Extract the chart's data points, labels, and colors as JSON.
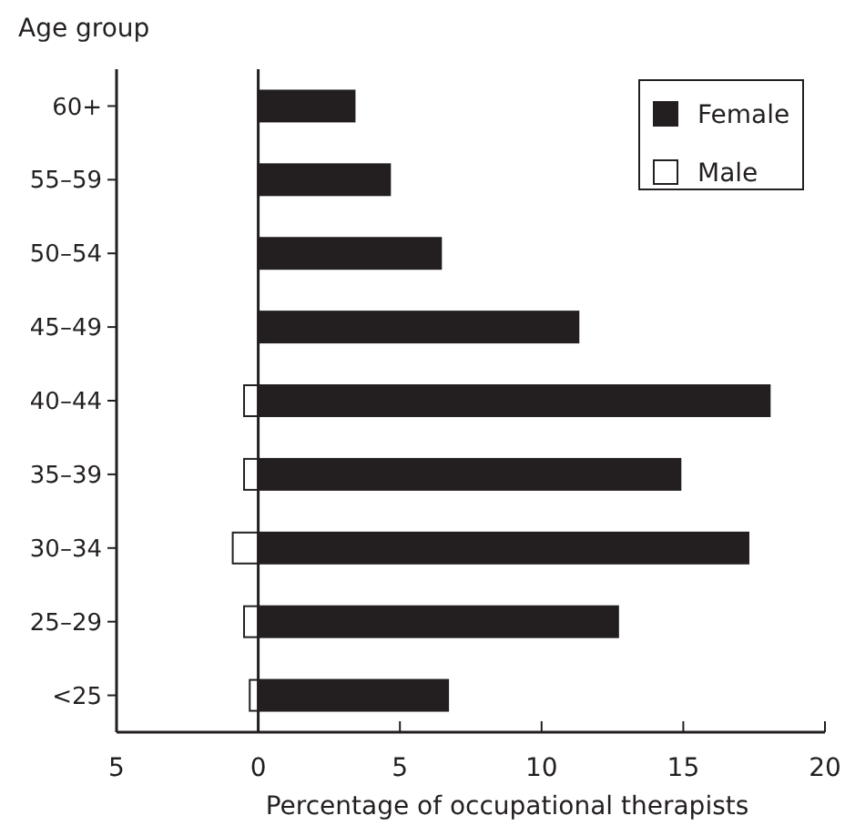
{
  "chart_data": {
    "type": "bar",
    "orientation": "horizontal",
    "stacked": true,
    "ylabel": "Age group",
    "xlabel": "Percentage of occupational therapists",
    "categories": [
      "60+",
      "55–59",
      "50–54",
      "45–49",
      "40–44",
      "35–39",
      "30–34",
      "25–29",
      "<25"
    ],
    "series": [
      {
        "name": "Female",
        "color": "#231f20",
        "values": [
          3.4,
          4.65,
          6.45,
          11.3,
          18.05,
          14.9,
          17.3,
          12.7,
          6.7
        ]
      },
      {
        "name": "Male",
        "color": "#ffffff",
        "values": [
          null,
          null,
          null,
          null,
          -0.5,
          -0.5,
          -0.9,
          -0.5,
          -0.3
        ]
      }
    ],
    "xlim": [
      -5,
      20
    ],
    "xticks": [
      {
        "value": -5,
        "label": "5"
      },
      0,
      5,
      10,
      15,
      20
    ],
    "ref_lines": [
      {
        "axis": "x",
        "value": 0
      }
    ],
    "legend": "top right",
    "grid": false
  }
}
